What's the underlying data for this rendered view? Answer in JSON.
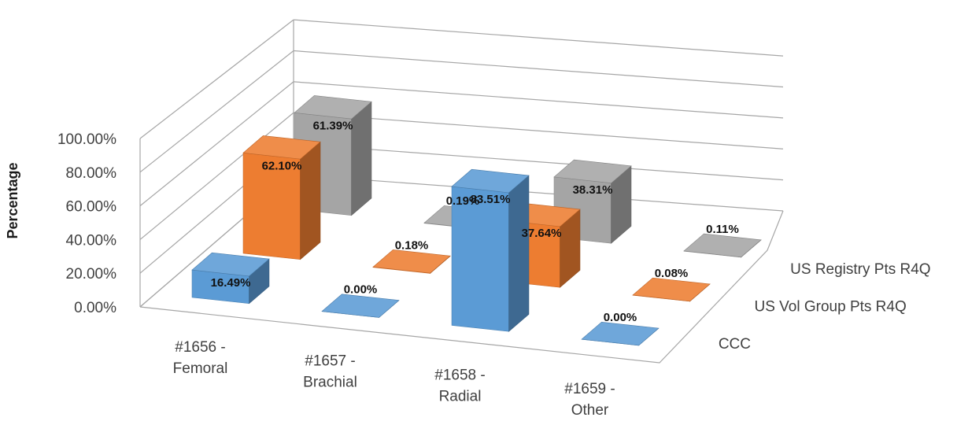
{
  "chart_data": {
    "type": "bar",
    "subtype": "3d-column",
    "title": "",
    "ylabel": "Percentage",
    "xlabel": "",
    "ylim": [
      0,
      100
    ],
    "yticks": [
      "0.00%",
      "20.00%",
      "40.00%",
      "60.00%",
      "80.00%",
      "100.00%"
    ],
    "grid": true,
    "categories": [
      [
        "#1656 -",
        "Femoral"
      ],
      [
        "#1657 -",
        "Brachial"
      ],
      [
        "#1658 -",
        "Radial"
      ],
      [
        "#1659 -",
        "Other"
      ]
    ],
    "series": [
      {
        "name": "CCC",
        "color": "#5b9bd5",
        "values": [
          16.49,
          0.0,
          83.51,
          0.0
        ],
        "labels": [
          "16.49%",
          "0.00%",
          "83.51%",
          "0.00%"
        ]
      },
      {
        "name": "US Vol Group Pts R4Q",
        "color": "#ed7d31",
        "values": [
          62.1,
          0.18,
          37.64,
          0.08
        ],
        "labels": [
          "62.10%",
          "0.18%",
          "37.64%",
          "0.08%"
        ]
      },
      {
        "name": "US Registry Pts R4Q",
        "color": "#a5a5a5",
        "values": [
          61.39,
          0.19,
          38.31,
          0.11
        ],
        "labels": [
          "61.39%",
          "0.19%",
          "38.31%",
          "0.11%"
        ]
      }
    ]
  }
}
